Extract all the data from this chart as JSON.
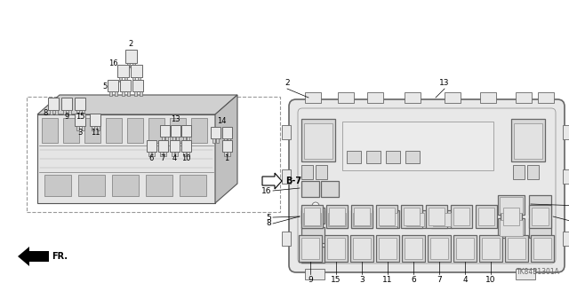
{
  "bg_color": "#ffffff",
  "lc_dark": "#444444",
  "lc_med": "#666666",
  "lc_light": "#999999",
  "fc_box": "#e8e8e8",
  "fc_inner": "#f0f0f0",
  "fc_relay": "#d8d8d8",
  "title_code": "TK84B1301A",
  "arrow_label": "B-7",
  "fr_label": "FR.",
  "fig_width": 6.4,
  "fig_height": 3.19,
  "dpi": 100
}
